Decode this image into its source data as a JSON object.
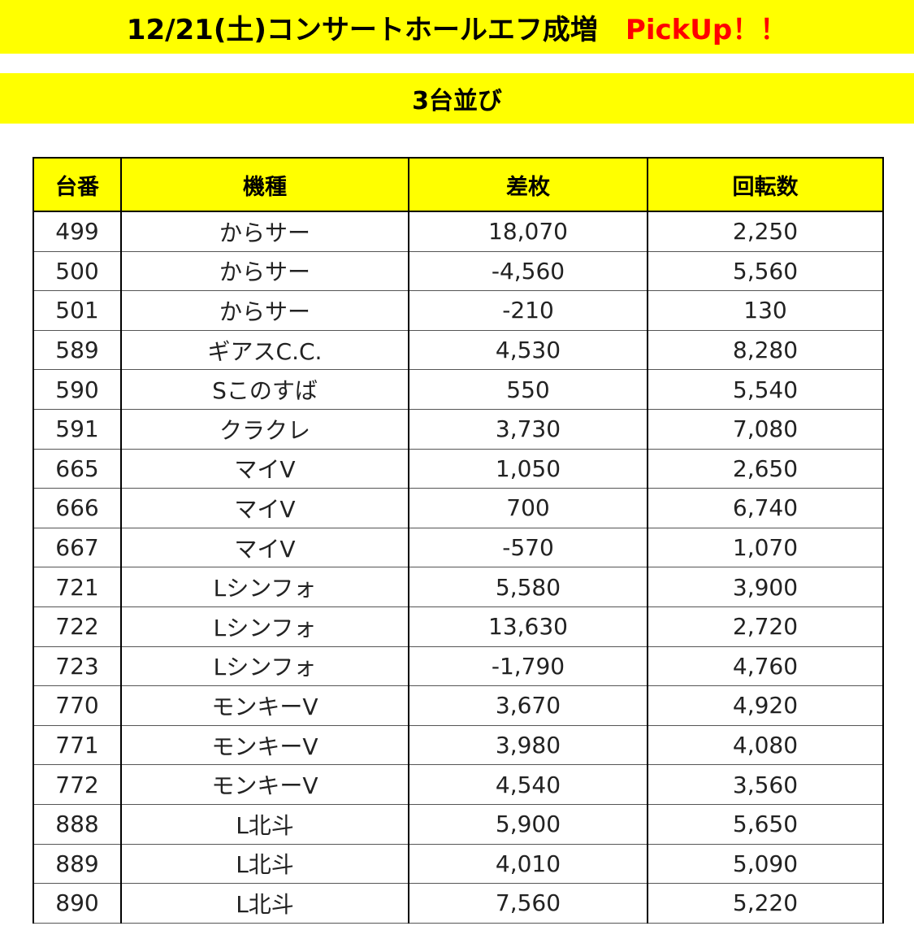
{
  "header": {
    "title": "12/21(土)コンサートホールエフ成増",
    "pickup": "PickUp！！"
  },
  "subheader": {
    "title": "3台並び"
  },
  "table": {
    "columns": [
      "台番",
      "機種",
      "差枚",
      "回転数"
    ],
    "rows": [
      [
        "499",
        "からサー",
        "18,070",
        "2,250"
      ],
      [
        "500",
        "からサー",
        "-4,560",
        "5,560"
      ],
      [
        "501",
        "からサー",
        "-210",
        "130"
      ],
      [
        "589",
        "ギアスC.C.",
        "4,530",
        "8,280"
      ],
      [
        "590",
        "Sこのすば",
        "550",
        "5,540"
      ],
      [
        "591",
        "クラクレ",
        "3,730",
        "7,080"
      ],
      [
        "665",
        "マイV",
        "1,050",
        "2,650"
      ],
      [
        "666",
        "マイV",
        "700",
        "6,740"
      ],
      [
        "667",
        "マイV",
        "-570",
        "1,070"
      ],
      [
        "721",
        "Lシンフォ",
        "5,580",
        "3,900"
      ],
      [
        "722",
        "Lシンフォ",
        "13,630",
        "2,720"
      ],
      [
        "723",
        "Lシンフォ",
        "-1,790",
        "4,760"
      ],
      [
        "770",
        "モンキーV",
        "3,670",
        "4,920"
      ],
      [
        "771",
        "モンキーV",
        "3,980",
        "4,080"
      ],
      [
        "772",
        "モンキーV",
        "4,540",
        "3,560"
      ],
      [
        "888",
        "L北斗",
        "5,900",
        "5,650"
      ],
      [
        "889",
        "L北斗",
        "4,010",
        "5,090"
      ],
      [
        "890",
        "L北斗",
        "7,560",
        "5,220"
      ]
    ]
  }
}
